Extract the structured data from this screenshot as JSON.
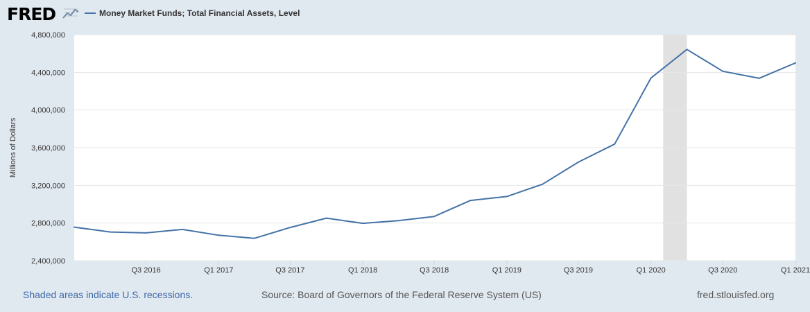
{
  "logo": {
    "text": "FRED",
    "icon": "fred-graph-icon"
  },
  "footer": {
    "recession_note": "Shaded areas indicate U.S. recessions.",
    "source": "Source: Board of Governors of the Federal Reserve System (US)",
    "site": "fred.stlouisfed.org"
  },
  "colors": {
    "line": "#4572a7",
    "recession": "#e1e1e1",
    "background": "#e1e9f0",
    "plot": "#ffffff",
    "note": "#3e68a8"
  },
  "chart_data": {
    "type": "line",
    "title": "",
    "xlabel": "",
    "ylabel": "Millions of Dollars",
    "x": [
      "2016-01-01",
      "2016-04-01",
      "2016-07-01",
      "2016-10-01",
      "2017-01-01",
      "2017-04-01",
      "2017-07-01",
      "2017-10-01",
      "2018-01-01",
      "2018-04-01",
      "2018-07-01",
      "2018-10-01",
      "2019-01-01",
      "2019-04-01",
      "2019-07-01",
      "2019-10-01",
      "2020-01-01",
      "2020-04-01",
      "2020-07-01",
      "2020-10-01",
      "2021-01-01"
    ],
    "series": [
      {
        "name": "Money Market Funds; Total Financial Assets, Level",
        "values": [
          2756000,
          2705000,
          2695000,
          2732000,
          2670000,
          2637000,
          2753000,
          2852000,
          2797000,
          2825000,
          2870000,
          3040000,
          3082000,
          3211000,
          3446000,
          3638000,
          4340000,
          4643000,
          4411000,
          4337000,
          4500000
        ]
      }
    ],
    "x_ticks": [
      {
        "date": "2016-07-01",
        "label": "Q3 2016"
      },
      {
        "date": "2017-01-01",
        "label": "Q1 2017"
      },
      {
        "date": "2017-07-01",
        "label": "Q3 2017"
      },
      {
        "date": "2018-01-01",
        "label": "Q1 2018"
      },
      {
        "date": "2018-07-01",
        "label": "Q3 2018"
      },
      {
        "date": "2019-01-01",
        "label": "Q1 2019"
      },
      {
        "date": "2019-07-01",
        "label": "Q3 2019"
      },
      {
        "date": "2020-01-01",
        "label": "Q1 2020"
      },
      {
        "date": "2020-07-01",
        "label": "Q3 2020"
      },
      {
        "date": "2021-01-01",
        "label": "Q1 2021"
      }
    ],
    "y_ticks": [
      {
        "value": 2400000,
        "label": "2,400,000"
      },
      {
        "value": 2800000,
        "label": "2,800,000"
      },
      {
        "value": 3200000,
        "label": "3,200,000"
      },
      {
        "value": 3600000,
        "label": "3,600,000"
      },
      {
        "value": 4000000,
        "label": "4,000,000"
      },
      {
        "value": 4400000,
        "label": "4,400,000"
      },
      {
        "value": 4800000,
        "label": "4,800,000"
      }
    ],
    "xlim": [
      "2016-01-01",
      "2021-01-01"
    ],
    "ylim": [
      2400000,
      4800000
    ],
    "recessions": [
      {
        "start": "2020-02-01",
        "end": "2020-04-01"
      }
    ],
    "grid": true,
    "legend": "top-left"
  }
}
